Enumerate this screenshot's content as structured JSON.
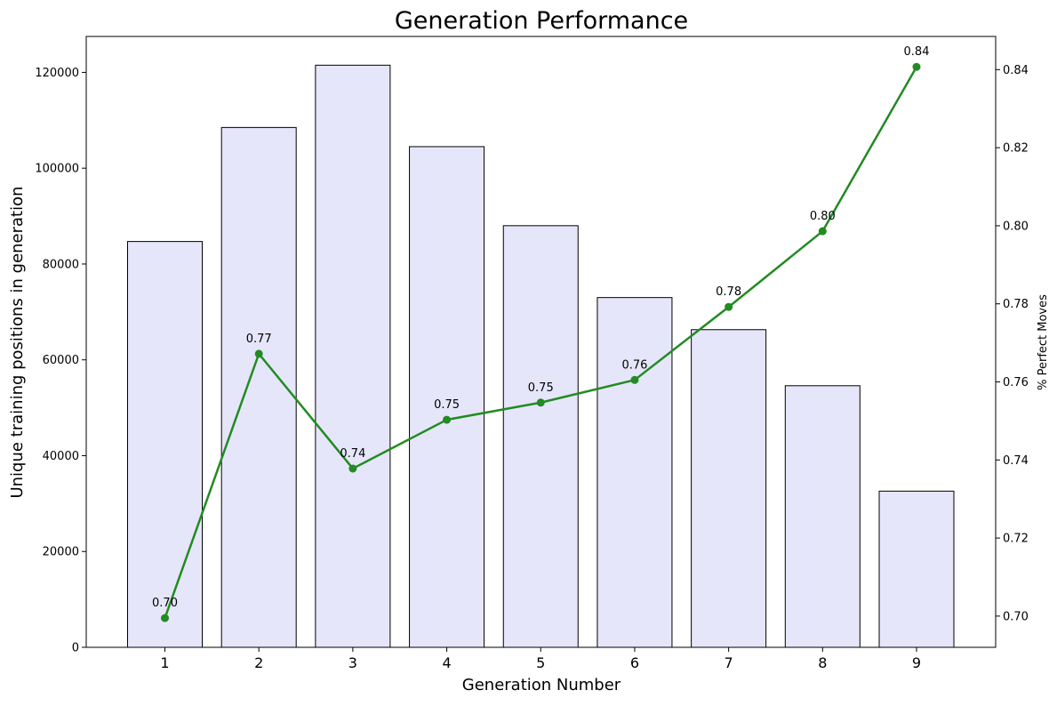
{
  "chart_data": {
    "type": "bar",
    "title": "Generation Performance",
    "xlabel": "Generation Number",
    "ylabel": "Unique training positions in generation",
    "y2label": "% Perfect Moves",
    "categories": [
      "1",
      "2",
      "3",
      "4",
      "5",
      "6",
      "7",
      "8",
      "9"
    ],
    "bars": {
      "values": [
        84700,
        108500,
        121500,
        104500,
        88000,
        73000,
        66300,
        54600,
        32600
      ],
      "color": "#e6e6fa",
      "edge_color": "#000000"
    },
    "line": {
      "values": [
        0.6995,
        0.7672,
        0.7378,
        0.7503,
        0.7547,
        0.7605,
        0.7792,
        0.7986,
        0.8407
      ],
      "labels": [
        "0.70",
        "0.77",
        "0.74",
        "0.75",
        "0.75",
        "0.76",
        "0.78",
        "0.80",
        "0.84"
      ],
      "color": "#228b22"
    },
    "ylim": [
      0,
      127500
    ],
    "y_ticks": [
      0,
      20000,
      40000,
      60000,
      80000,
      100000,
      120000
    ],
    "y_tick_labels": [
      "0",
      "20000",
      "40000",
      "60000",
      "80000",
      "100000",
      "120000"
    ],
    "y2lim": [
      0.692,
      0.8485
    ],
    "y2_ticks": [
      0.7,
      0.72,
      0.74,
      0.76,
      0.78,
      0.8,
      0.82,
      0.84
    ],
    "y2_tick_labels": [
      "0.70",
      "0.72",
      "0.74",
      "0.76",
      "0.78",
      "0.80",
      "0.82",
      "0.84"
    ],
    "grid": false
  }
}
